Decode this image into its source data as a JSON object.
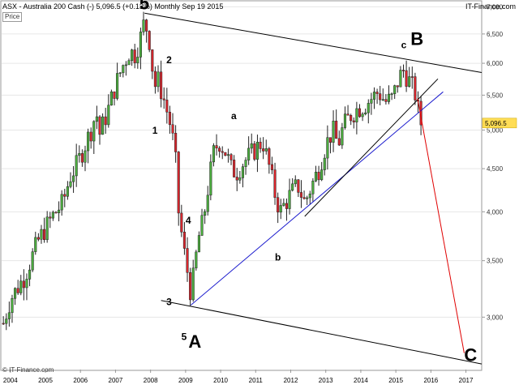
{
  "header": {
    "left": "ASX - Australia 200 Cash (-)    5,096.5 (+0.13%)    Monthly   Sep 19 2015",
    "right": "IT-Finance.com",
    "price_label": "Price"
  },
  "footer": "© IT-Finance.com",
  "colors": {
    "up": "#4caf3f",
    "down": "#d9262d",
    "frame": "#999999",
    "channel": "#000000",
    "support": "#1a1acd",
    "projection": "#e00000",
    "last_price_bg": "#ffdd55"
  },
  "chart_data": {
    "type": "candlestick",
    "timeframe": "Monthly",
    "instrument": "ASX - Australia 200 Cash (-)",
    "last_price": "5,096.5",
    "change": "+0.13%",
    "date": "Sep 19 2015",
    "y_scale": "log",
    "ylim": [
      2600,
      7100
    ],
    "xlim": [
      2003.75,
      2017.45
    ],
    "y_ticks": [
      3000,
      3500,
      4000,
      4500,
      5000,
      5500,
      6000,
      6500,
      7000
    ],
    "y_tick_labels": [
      "3,000",
      "3,500",
      "4,000",
      "4,500",
      "5,000",
      "5,500",
      "6,000",
      "6,500",
      "7,000"
    ],
    "x_ticks": [
      2004,
      2005,
      2006,
      2007,
      2008,
      2009,
      2010,
      2011,
      2012,
      2013,
      2014,
      2015,
      2016,
      2017
    ],
    "close_path": [
      [
        2003.8,
        2950
      ],
      [
        2004.0,
        3150
      ],
      [
        2004.4,
        3350
      ],
      [
        2004.8,
        3700
      ],
      [
        2005.2,
        3950
      ],
      [
        2005.5,
        4100
      ],
      [
        2005.7,
        4400
      ],
      [
        2005.9,
        4550
      ],
      [
        2006.3,
        5000
      ],
      [
        2006.45,
        5250
      ],
      [
        2006.55,
        4950
      ],
      [
        2006.8,
        5300
      ],
      [
        2007.0,
        5650
      ],
      [
        2007.2,
        5950
      ],
      [
        2007.4,
        6200
      ],
      [
        2007.55,
        6150
      ],
      [
        2007.7,
        6400
      ],
      [
        2007.83,
        6750
      ],
      [
        2008.0,
        6300
      ],
      [
        2008.1,
        5600
      ],
      [
        2008.2,
        5750
      ],
      [
        2008.4,
        5400
      ],
      [
        2008.55,
        5100
      ],
      [
        2008.7,
        4700
      ],
      [
        2008.8,
        4000
      ],
      [
        2008.95,
        3600
      ],
      [
        2009.05,
        3400
      ],
      [
        2009.15,
        3200
      ],
      [
        2009.25,
        3400
      ],
      [
        2009.35,
        3700
      ],
      [
        2009.5,
        3900
      ],
      [
        2009.65,
        4300
      ],
      [
        2009.8,
        4700
      ],
      [
        2009.95,
        4850
      ],
      [
        2010.15,
        4700
      ],
      [
        2010.3,
        4500
      ],
      [
        2010.45,
        4450
      ],
      [
        2010.6,
        4550
      ],
      [
        2010.8,
        4650
      ],
      [
        2011.0,
        4750
      ],
      [
        2011.2,
        4850
      ],
      [
        2011.4,
        4500
      ],
      [
        2011.55,
        4200
      ],
      [
        2011.7,
        4000
      ],
      [
        2011.85,
        4100
      ],
      [
        2012.0,
        4200
      ],
      [
        2012.2,
        4300
      ],
      [
        2012.4,
        4100
      ],
      [
        2012.6,
        4300
      ],
      [
        2012.8,
        4500
      ],
      [
        2013.0,
        4800
      ],
      [
        2013.2,
        5000
      ],
      [
        2013.35,
        4800
      ],
      [
        2013.5,
        5050
      ],
      [
        2013.7,
        5200
      ],
      [
        2013.9,
        5300
      ],
      [
        2014.1,
        5350
      ],
      [
        2014.3,
        5450
      ],
      [
        2014.5,
        5550
      ],
      [
        2014.7,
        5400
      ],
      [
        2014.9,
        5450
      ],
      [
        2015.05,
        5700
      ],
      [
        2015.2,
        5900
      ],
      [
        2015.3,
        5800
      ],
      [
        2015.45,
        5650
      ],
      [
        2015.6,
        5450
      ],
      [
        2015.67,
        5100
      ],
      [
        2015.72,
        5096.5
      ]
    ],
    "trendlines": [
      {
        "name": "upper-channel",
        "points": [
          [
            2007.83,
            6880
          ],
          [
            2017.45,
            5850
          ]
        ]
      },
      {
        "name": "lower-channel",
        "points": [
          [
            2008.3,
            3140
          ],
          [
            2017.45,
            2640
          ]
        ]
      },
      {
        "name": "support-blue",
        "points": [
          [
            2009.15,
            3100
          ],
          [
            2016.35,
            5550
          ]
        ]
      },
      {
        "name": "support-black",
        "points": [
          [
            2012.4,
            3950
          ],
          [
            2016.2,
            5750
          ]
        ]
      },
      {
        "name": "projection-red",
        "points": [
          [
            2015.62,
            5450
          ],
          [
            2016.95,
            2720
          ]
        ]
      }
    ],
    "annotations": [
      {
        "text": "5",
        "x": 2007.68,
        "y": 6950,
        "size": "big"
      },
      {
        "text": "2",
        "x": 2008.45,
        "y": 6000,
        "size": "small"
      },
      {
        "text": "1",
        "x": 2008.05,
        "y": 4950,
        "size": "small"
      },
      {
        "text": "4",
        "x": 2009.0,
        "y": 3870,
        "size": "small"
      },
      {
        "text": "3",
        "x": 2008.45,
        "y": 3100,
        "size": "small"
      },
      {
        "text": "5",
        "x": 2008.88,
        "y": 2820,
        "size": "small"
      },
      {
        "text": "A",
        "x": 2009.08,
        "y": 2760,
        "size": "big"
      },
      {
        "text": "a",
        "x": 2010.3,
        "y": 5150,
        "size": "small"
      },
      {
        "text": "b",
        "x": 2011.55,
        "y": 3500,
        "size": "small"
      },
      {
        "text": "c",
        "x": 2015.15,
        "y": 6250,
        "size": "small"
      },
      {
        "text": "B",
        "x": 2015.42,
        "y": 6310,
        "size": "big"
      },
      {
        "text": "C",
        "x": 2016.95,
        "y": 2660,
        "size": "big"
      }
    ]
  }
}
